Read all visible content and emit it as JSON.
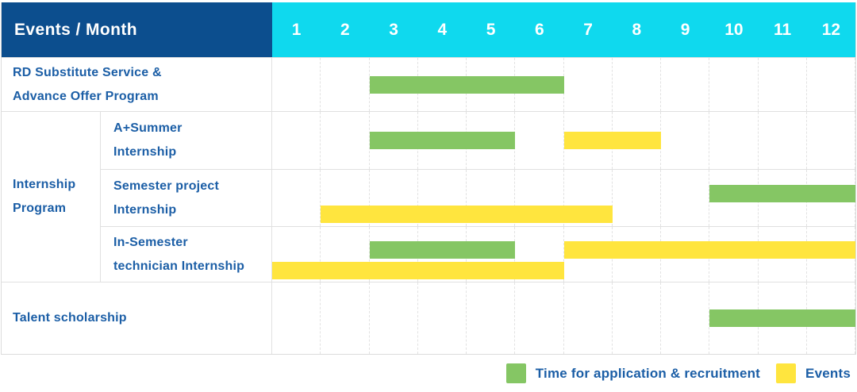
{
  "header": {
    "label": "Events / Month",
    "months": [
      "1",
      "2",
      "3",
      "4",
      "5",
      "6",
      "7",
      "8",
      "9",
      "10",
      "11",
      "12"
    ]
  },
  "colors": {
    "header_navy": "#0C4E8E",
    "header_cyan": "#0FD9EE",
    "application": "#85C664",
    "event": "#FFE53E",
    "text_blue": "#1B5EA6",
    "grid": "#E0E0E0"
  },
  "chart_data": {
    "type": "gantt",
    "title": "Events / Month",
    "x_axis": {
      "unit": "month",
      "range": [
        1,
        12
      ]
    },
    "legend_position": "bottom-right",
    "rows": [
      {
        "group": null,
        "label": "RD Substitute Service & Advance Offer Program",
        "lines": [
          "RD Substitute Service &",
          "Advance Offer Program"
        ],
        "lanes": 1,
        "bars": [
          {
            "type": "application",
            "start": 3,
            "end": 6,
            "lane": 0
          }
        ]
      },
      {
        "group": "Internship Program",
        "label": "A+Summer Internship",
        "lines": [
          "A+Summer",
          "Internship"
        ],
        "lanes": 1,
        "bars": [
          {
            "type": "application",
            "start": 3,
            "end": 5,
            "lane": 0
          },
          {
            "type": "event",
            "start": 7,
            "end": 8,
            "lane": 0
          }
        ]
      },
      {
        "group": "Internship Program",
        "label": "Semester project Internship",
        "lines": [
          "Semester project",
          "Internship"
        ],
        "lanes": 2,
        "bars": [
          {
            "type": "application",
            "start": 10,
            "end": 12,
            "lane": 0
          },
          {
            "type": "event",
            "start": 2,
            "end": 7,
            "lane": 1
          }
        ]
      },
      {
        "group": "Internship Program",
        "label": "In-Semester technician Internship",
        "lines": [
          "In-Semester",
          "technician Internship"
        ],
        "lanes": 2,
        "bars": [
          {
            "type": "application",
            "start": 3,
            "end": 5,
            "lane": 0
          },
          {
            "type": "event",
            "start": 7,
            "end": 12,
            "lane": 0
          },
          {
            "type": "event",
            "start": 1,
            "end": 6,
            "lane": 1
          }
        ]
      },
      {
        "group": null,
        "label": "Talent scholarship",
        "lines": [
          "Talent scholarship"
        ],
        "lanes": 1,
        "bars": [
          {
            "type": "application",
            "start": 10,
            "end": 12,
            "lane": 0
          }
        ]
      }
    ]
  },
  "group_label": {
    "lines": [
      "Internship",
      "Program"
    ]
  },
  "legend": {
    "items": [
      {
        "type": "application",
        "label": "Time for application & recruitment",
        "color": "#85C664"
      },
      {
        "type": "event",
        "label": "Events",
        "color": "#FFE53E"
      }
    ]
  }
}
